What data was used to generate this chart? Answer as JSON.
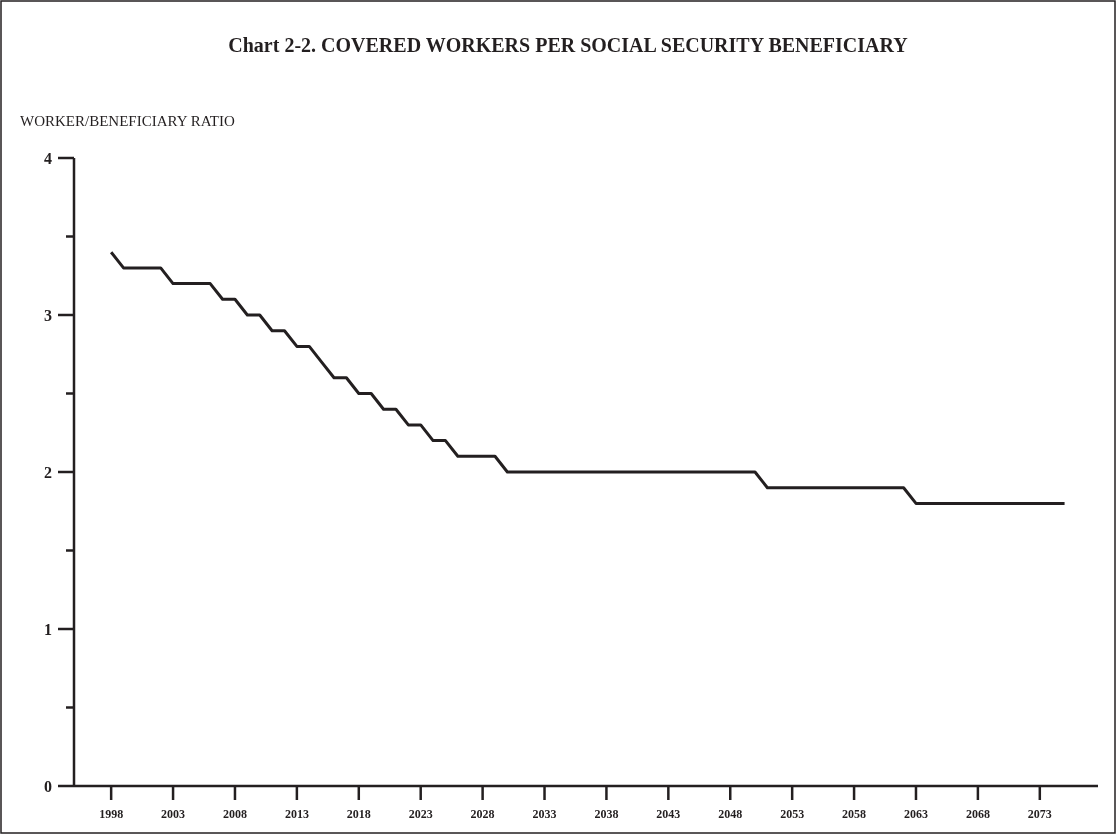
{
  "chart_data": {
    "type": "line",
    "title": "Chart 2-2.  COVERED WORKERS PER SOCIAL SECURITY BENEFICIARY",
    "ylabel": "WORKER/BENEFICIARY  RATIO",
    "x": [
      1998,
      1999,
      2000,
      2001,
      2002,
      2003,
      2004,
      2005,
      2006,
      2007,
      2008,
      2009,
      2010,
      2011,
      2012,
      2013,
      2014,
      2015,
      2016,
      2017,
      2018,
      2019,
      2020,
      2021,
      2022,
      2023,
      2024,
      2025,
      2026,
      2027,
      2028,
      2029,
      2030,
      2031,
      2032,
      2033,
      2034,
      2035,
      2036,
      2037,
      2038,
      2039,
      2040,
      2041,
      2042,
      2043,
      2044,
      2045,
      2046,
      2047,
      2048,
      2049,
      2050,
      2051,
      2052,
      2053,
      2054,
      2055,
      2056,
      2057,
      2058,
      2059,
      2060,
      2061,
      2062,
      2063,
      2064,
      2065,
      2066,
      2067,
      2068,
      2069,
      2070,
      2071,
      2072,
      2073,
      2074,
      2075
    ],
    "series": [
      {
        "color": "#231f20",
        "values": [
          3.4,
          3.3,
          3.3,
          3.3,
          3.3,
          3.2,
          3.2,
          3.2,
          3.2,
          3.1,
          3.1,
          3.0,
          3.0,
          2.9,
          2.9,
          2.8,
          2.8,
          2.7,
          2.6,
          2.6,
          2.5,
          2.5,
          2.4,
          2.4,
          2.3,
          2.3,
          2.2,
          2.2,
          2.1,
          2.1,
          2.1,
          2.1,
          2.0,
          2.0,
          2.0,
          2.0,
          2.0,
          2.0,
          2.0,
          2.0,
          2.0,
          2.0,
          2.0,
          2.0,
          2.0,
          2.0,
          2.0,
          2.0,
          2.0,
          2.0,
          2.0,
          2.0,
          2.0,
          1.9,
          1.9,
          1.9,
          1.9,
          1.9,
          1.9,
          1.9,
          1.9,
          1.9,
          1.9,
          1.9,
          1.9,
          1.8,
          1.8,
          1.8,
          1.8,
          1.8,
          1.8,
          1.8,
          1.8,
          1.8,
          1.8,
          1.8,
          1.8,
          1.8
        ]
      }
    ],
    "xlim": [
      1995,
      2077.7
    ],
    "xticks": [
      1998,
      2003,
      2008,
      2013,
      2018,
      2023,
      2028,
      2033,
      2038,
      2043,
      2048,
      2053,
      2058,
      2063,
      2068,
      2073
    ],
    "ylim": [
      0,
      4
    ],
    "yticks": [
      0,
      {
        "value": 0.5,
        "label": null
      },
      1,
      {
        "value": 1.5,
        "label": null
      },
      2,
      {
        "value": 2.5,
        "label": null
      },
      3,
      {
        "value": 3.5,
        "label": null
      },
      4
    ],
    "grid": false,
    "line_style": "solid",
    "marker": "none"
  }
}
